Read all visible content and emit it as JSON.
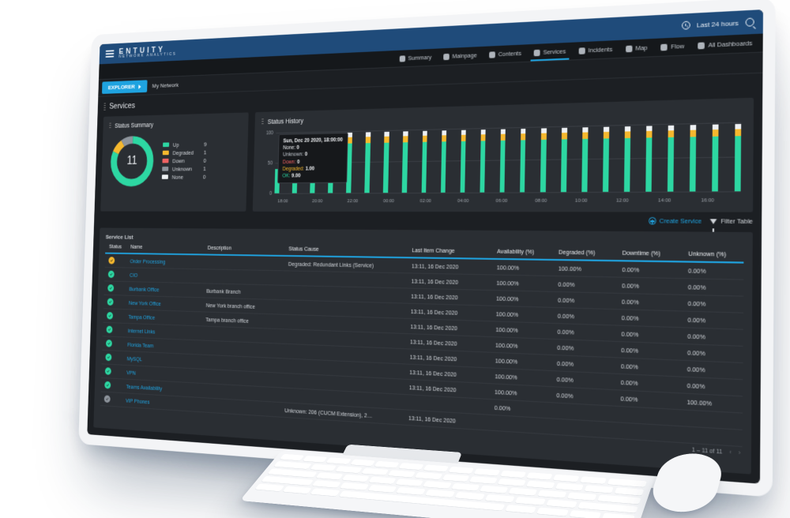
{
  "brand": {
    "name": "ENTUITY",
    "tagline": "NETWORK ANALYTICS"
  },
  "topbar": {
    "time_range": "Last 24 hours"
  },
  "nav": {
    "items": [
      {
        "label": "Summary",
        "active": false
      },
      {
        "label": "Mainpage",
        "active": false
      },
      {
        "label": "Contents",
        "active": false
      },
      {
        "label": "Services",
        "active": true
      },
      {
        "label": "Incidents",
        "active": false
      },
      {
        "label": "Map",
        "active": false
      },
      {
        "label": "Flow",
        "active": false
      },
      {
        "label": "All Dashboards",
        "active": false
      }
    ]
  },
  "crumb": {
    "explorer": "EXPLORER",
    "path": "My Network"
  },
  "page": {
    "title": "Services"
  },
  "status_summary": {
    "title": "Status Summary",
    "total": 11,
    "legend": [
      {
        "label": "Up",
        "color": "#2dd7a2",
        "count": 9
      },
      {
        "label": "Degraded",
        "color": "#f5b82e",
        "count": 1
      },
      {
        "label": "Down",
        "color": "#f06363",
        "count": 0
      },
      {
        "label": "Unknown",
        "color": "#8d949c",
        "count": 1
      },
      {
        "label": "None",
        "color": "#eef1f4",
        "count": 0
      }
    ]
  },
  "status_history": {
    "title": "Status History",
    "ylim": [
      0,
      100
    ],
    "yticks": [
      0,
      50,
      100
    ],
    "xticks": [
      "18:00",
      "20:00",
      "22:00",
      "00:00",
      "02:00",
      "04:00",
      "06:00",
      "08:00",
      "10:00",
      "12:00",
      "14:00",
      "16:00"
    ],
    "colors": {
      "ok": "#2dd7a2",
      "deg": "#f5b82e",
      "none": "#eef1f4",
      "down": "#f06363",
      "unk": "#8d949c",
      "grid": "#3a3e44",
      "bg": "#2a2e33"
    },
    "bars": [
      {
        "ok": 40,
        "deg": 0,
        "none": 0
      },
      {
        "ok": 45,
        "deg": 0,
        "none": 0
      },
      {
        "ok": 78,
        "deg": 10,
        "none": 8
      },
      {
        "ok": 80,
        "deg": 10,
        "none": 8
      },
      {
        "ok": 80,
        "deg": 10,
        "none": 8
      },
      {
        "ok": 80,
        "deg": 10,
        "none": 8
      },
      {
        "ok": 80,
        "deg": 10,
        "none": 8
      },
      {
        "ok": 80,
        "deg": 10,
        "none": 8
      },
      {
        "ok": 80,
        "deg": 10,
        "none": 8
      },
      {
        "ok": 80,
        "deg": 10,
        "none": 8
      },
      {
        "ok": 80,
        "deg": 10,
        "none": 8
      },
      {
        "ok": 80,
        "deg": 10,
        "none": 8
      },
      {
        "ok": 80,
        "deg": 10,
        "none": 8
      },
      {
        "ok": 80,
        "deg": 10,
        "none": 8
      },
      {
        "ok": 80,
        "deg": 10,
        "none": 8
      },
      {
        "ok": 80,
        "deg": 10,
        "none": 8
      },
      {
        "ok": 80,
        "deg": 10,
        "none": 8
      },
      {
        "ok": 80,
        "deg": 10,
        "none": 8
      },
      {
        "ok": 80,
        "deg": 10,
        "none": 8
      },
      {
        "ok": 80,
        "deg": 10,
        "none": 8
      },
      {
        "ok": 80,
        "deg": 10,
        "none": 8
      },
      {
        "ok": 80,
        "deg": 10,
        "none": 8
      },
      {
        "ok": 80,
        "deg": 10,
        "none": 8
      },
      {
        "ok": 80,
        "deg": 10,
        "none": 8
      }
    ],
    "tooltip": {
      "title": "Sun, Dec 20 2020, 18:00:00",
      "rows": [
        {
          "label": "None",
          "value": "0",
          "cls": "tt-none"
        },
        {
          "label": "Unknown",
          "value": "0",
          "cls": "tt-unk"
        },
        {
          "label": "Down",
          "value": "0",
          "cls": "tt-down"
        },
        {
          "label": "Degraded",
          "value": "1.00",
          "cls": "tt-deg"
        },
        {
          "label": "OK",
          "value": "9.00",
          "cls": "tt-ok"
        }
      ]
    }
  },
  "toolbar": {
    "create": "Create Service",
    "filter": "Filter Table"
  },
  "table": {
    "title": "Service List",
    "columns": [
      "Status",
      "Name",
      "Description",
      "Status Cause",
      "Last Item Change",
      "Availability (%)",
      "Degraded (%)",
      "Downtime (%)",
      "Unknown (%)"
    ],
    "col_widths": [
      "4%",
      "14%",
      "14%",
      "20%",
      "13%",
      "9%",
      "9%",
      "9%",
      "8%"
    ],
    "status_colors": {
      "ok": "#2dd7a2",
      "deg": "#f5b82e",
      "unk": "#8d949c"
    },
    "rows": [
      {
        "status": "deg",
        "name": "Order Processing",
        "desc": "",
        "cause": "Degraded: Redundant Links (Service)",
        "changed": "13:11, 16 Dec 2020",
        "avail": "100.00%",
        "deg": "100.00%",
        "down": "0.00%",
        "unk": "0.00%"
      },
      {
        "status": "ok",
        "name": "CIO",
        "desc": "",
        "cause": "",
        "changed": "13:11, 16 Dec 2020",
        "avail": "100.00%",
        "deg": "0.00%",
        "down": "0.00%",
        "unk": "0.00%"
      },
      {
        "status": "ok",
        "name": "Burbank Office",
        "desc": "Burbank Branch",
        "cause": "",
        "changed": "13:11, 16 Dec 2020",
        "avail": "100.00%",
        "deg": "0.00%",
        "down": "0.00%",
        "unk": "0.00%"
      },
      {
        "status": "ok",
        "name": "New York Office",
        "desc": "New York branch office",
        "cause": "",
        "changed": "13:11, 16 Dec 2020",
        "avail": "100.00%",
        "deg": "0.00%",
        "down": "0.00%",
        "unk": "0.00%"
      },
      {
        "status": "ok",
        "name": "Tampa Office",
        "desc": "Tampa branch office",
        "cause": "",
        "changed": "13:11, 16 Dec 2020",
        "avail": "100.00%",
        "deg": "0.00%",
        "down": "0.00%",
        "unk": "0.00%"
      },
      {
        "status": "ok",
        "name": "Internet Links",
        "desc": "",
        "cause": "",
        "changed": "13:11, 16 Dec 2020",
        "avail": "100.00%",
        "deg": "0.00%",
        "down": "0.00%",
        "unk": "0.00%"
      },
      {
        "status": "ok",
        "name": "Florida Team",
        "desc": "",
        "cause": "",
        "changed": "13:11, 16 Dec 2020",
        "avail": "100.00%",
        "deg": "0.00%",
        "down": "0.00%",
        "unk": "0.00%"
      },
      {
        "status": "ok",
        "name": "MySQL",
        "desc": "",
        "cause": "",
        "changed": "13:11, 16 Dec 2020",
        "avail": "100.00%",
        "deg": "0.00%",
        "down": "0.00%",
        "unk": "0.00%"
      },
      {
        "status": "ok",
        "name": "VPN",
        "desc": "",
        "cause": "",
        "changed": "13:11, 16 Dec 2020",
        "avail": "100.00%",
        "deg": "0.00%",
        "down": "0.00%",
        "unk": "100.00%"
      },
      {
        "status": "ok",
        "name": "Teams Availability",
        "desc": "",
        "cause": "",
        "changed": "",
        "avail": "0.00%",
        "deg": "",
        "down": "",
        "unk": ""
      },
      {
        "status": "unk",
        "name": "VIP Phones",
        "desc": "",
        "cause": "Unknown: 206 (CUCM Extension), 2…",
        "changed": "13:11, 16 Dec 2020",
        "avail": "",
        "deg": "",
        "down": "",
        "unk": ""
      }
    ],
    "pager": "1 – 11 of 11"
  }
}
